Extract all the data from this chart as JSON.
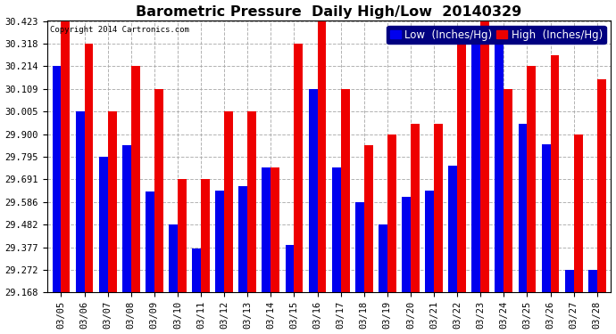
{
  "title": "Barometric Pressure  Daily High/Low  20140329",
  "copyright": "Copyright 2014 Cartronics.com",
  "legend_low": "Low  (Inches/Hg)",
  "legend_high": "High  (Inches/Hg)",
  "dates": [
    "03/05",
    "03/06",
    "03/07",
    "03/08",
    "03/09",
    "03/10",
    "03/11",
    "03/12",
    "03/13",
    "03/14",
    "03/15",
    "03/16",
    "03/17",
    "03/18",
    "03/19",
    "03/20",
    "03/21",
    "03/22",
    "03/23",
    "03/24",
    "03/25",
    "03/26",
    "03/27",
    "03/28"
  ],
  "low": [
    30.214,
    30.005,
    29.795,
    29.848,
    29.635,
    29.482,
    29.37,
    29.64,
    29.66,
    29.745,
    29.39,
    30.109,
    29.745,
    29.586,
    29.482,
    29.61,
    29.64,
    29.755,
    30.318,
    30.318,
    29.95,
    29.855,
    29.272,
    29.272
  ],
  "high": [
    30.423,
    30.318,
    30.005,
    30.214,
    30.109,
    29.691,
    29.691,
    30.005,
    30.005,
    29.745,
    30.318,
    30.423,
    30.109,
    29.848,
    29.9,
    29.95,
    29.95,
    30.318,
    30.423,
    30.109,
    30.214,
    30.265,
    29.9,
    30.154
  ],
  "ymin": 29.168,
  "ymax": 30.423,
  "yticks": [
    29.168,
    29.272,
    29.377,
    29.482,
    29.586,
    29.691,
    29.795,
    29.9,
    30.005,
    30.109,
    30.214,
    30.318,
    30.423
  ],
  "bar_width": 0.38,
  "low_color": "#0000ee",
  "high_color": "#ee0000",
  "bg_color": "#ffffff",
  "grid_color": "#aaaaaa",
  "title_fontsize": 11.5,
  "tick_fontsize": 7.5,
  "legend_fontsize": 8.5
}
